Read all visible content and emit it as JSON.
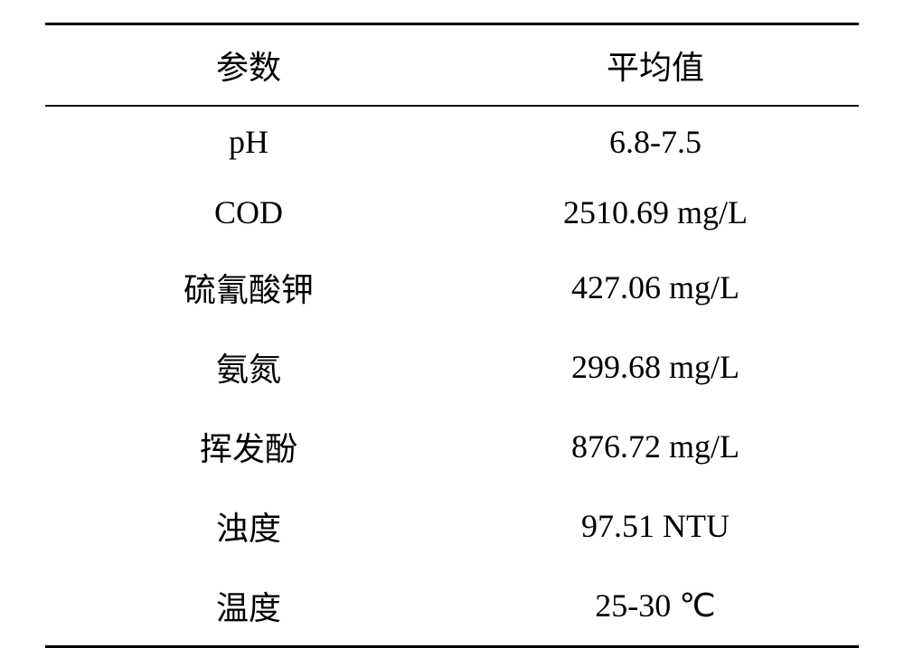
{
  "table": {
    "type": "table",
    "background_color": "#ffffff",
    "text_color": "#000000",
    "border_color": "#000000",
    "top_border_width": 3,
    "header_bottom_border_width": 2,
    "bottom_border_width": 3,
    "font_size": 36,
    "columns": [
      {
        "key": "param",
        "header": "参数",
        "width_percent": 50,
        "align": "center"
      },
      {
        "key": "value",
        "header": "平均值",
        "width_percent": 50,
        "align": "center"
      }
    ],
    "rows": [
      {
        "param": "pH",
        "value": "6.8-7.5"
      },
      {
        "param": "COD",
        "value": "2510.69 mg/L"
      },
      {
        "param": "硫氰酸钾",
        "value": "427.06 mg/L"
      },
      {
        "param": "氨氮",
        "value": "299.68 mg/L"
      },
      {
        "param": "挥发酚",
        "value": "876.72 mg/L"
      },
      {
        "param": "浊度",
        "value": "97.51 NTU"
      },
      {
        "param": "温度",
        "value": "25-30 ℃"
      }
    ]
  }
}
